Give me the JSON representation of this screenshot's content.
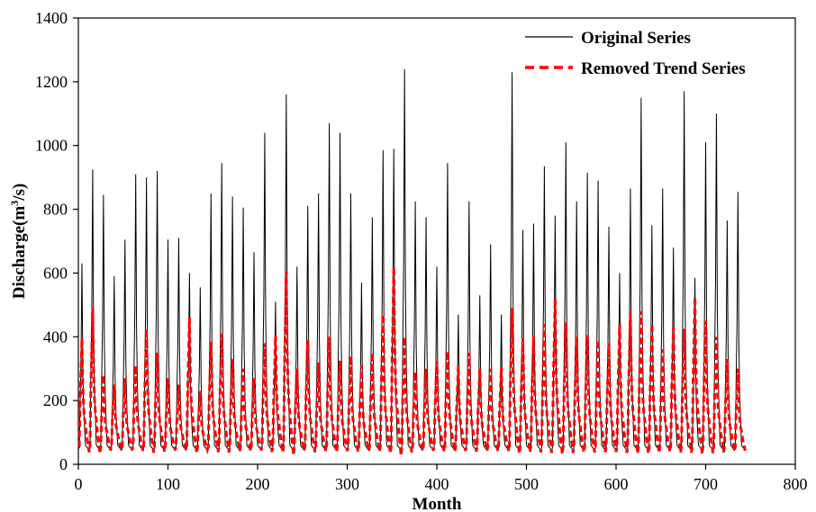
{
  "chart_data": {
    "type": "line",
    "xlabel": "Month",
    "ylabel_main": "Discharge(m",
    "ylabel_sup": "3",
    "ylabel_tail": "/s)",
    "xlim": [
      0,
      800
    ],
    "ylim": [
      0,
      1400
    ],
    "xticks": [
      0,
      100,
      200,
      300,
      400,
      500,
      600,
      700,
      800
    ],
    "yticks": [
      0,
      200,
      400,
      600,
      800,
      1000,
      1200,
      1400
    ],
    "grid": false,
    "legend_position": "top-right",
    "n_months": 744,
    "series": [
      {
        "name": "Original Series",
        "color": "#000000",
        "style": "solid",
        "annual_peaks": [
          630,
          925,
          845,
          590,
          705,
          910,
          900,
          920,
          705,
          710,
          600,
          555,
          850,
          945,
          840,
          805,
          665,
          1040,
          510,
          1160,
          620,
          810,
          850,
          1070,
          1040,
          850,
          570,
          775,
          985,
          990,
          1240,
          825,
          775,
          620,
          945,
          470,
          825,
          530,
          690,
          470,
          1230,
          735,
          755,
          935,
          780,
          1010,
          825,
          915,
          890,
          745,
          600,
          865,
          1150,
          750,
          865,
          680,
          1170,
          585,
          1010,
          1100,
          765,
          855
        ],
        "baseline_low": 40
      },
      {
        "name": "Removed Trend Series",
        "color": "#ff0000",
        "style": "dashed",
        "annual_peaks": [
          395,
          490,
          280,
          250,
          270,
          310,
          425,
          350,
          270,
          250,
          460,
          230,
          385,
          410,
          330,
          300,
          270,
          380,
          405,
          605,
          300,
          390,
          320,
          400,
          325,
          340,
          310,
          350,
          470,
          620,
          400,
          290,
          300,
          325,
          355,
          310,
          350,
          300,
          300,
          305,
          490,
          395,
          400,
          440,
          520,
          445,
          400,
          405,
          390,
          380,
          440,
          480,
          480,
          440,
          360,
          430,
          425,
          525,
          450,
          400,
          330,
          300
        ],
        "mean_level": 175
      }
    ]
  }
}
